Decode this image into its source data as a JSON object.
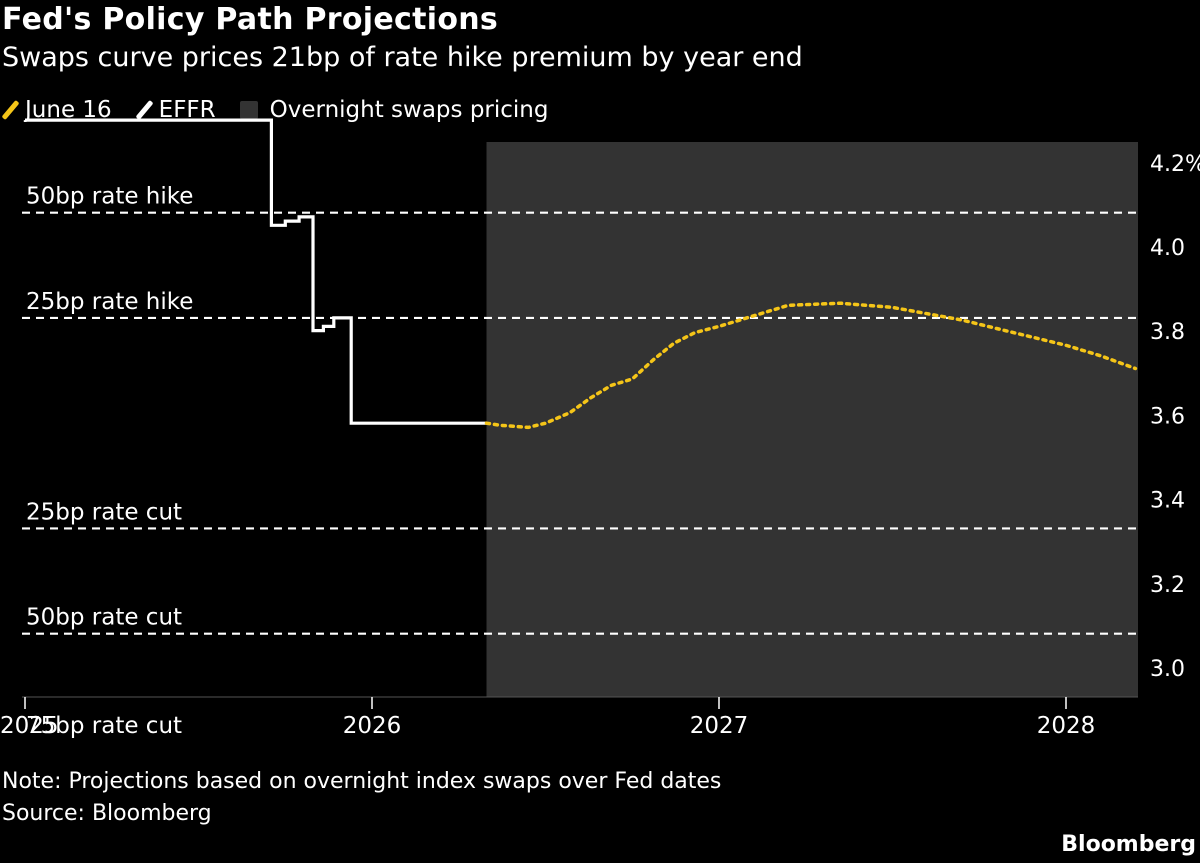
{
  "title": "Fed's Policy Path Projections",
  "subtitle": "Swaps curve prices 21bp of rate hike premium by year end",
  "legend": {
    "june16": "June 16",
    "effr": "EFFR",
    "overnight": "Overnight swaps pricing"
  },
  "note": "Note: Projections based on overnight index swaps over Fed dates",
  "source": "Source: Bloomberg",
  "brand": "Bloomberg",
  "colors": {
    "june16": "#f5c518",
    "effr": "#ffffff",
    "shade": "#333333",
    "background": "#000000"
  },
  "chart_data": {
    "type": "line",
    "title": "Fed's Policy Path Projections",
    "subtitle": "Swaps curve prices 21bp of rate hike premium by year end",
    "ylim": [
      3.0,
      4.25
    ],
    "xlim": [
      2025.0,
      2028.21
    ],
    "y_ticks": [
      {
        "value": 4.2,
        "label": "4.2%"
      },
      {
        "value": 4.0,
        "label": "4.0"
      },
      {
        "value": 3.8,
        "label": "3.8"
      },
      {
        "value": 3.6,
        "label": "3.6"
      },
      {
        "value": 3.4,
        "label": "3.4"
      },
      {
        "value": 3.2,
        "label": "3.2"
      },
      {
        "value": 3.0,
        "label": "3.0"
      }
    ],
    "x_ticks": [
      {
        "value": 2025.0,
        "label": "2025"
      },
      {
        "value": 2026.0,
        "label": "2026"
      },
      {
        "value": 2027.0,
        "label": "2027"
      },
      {
        "value": 2028.0,
        "label": "2028"
      }
    ],
    "reference_lines": [
      {
        "label": "50bp rate hike",
        "value": 4.11
      },
      {
        "label": "25bp rate hike",
        "value": 3.86
      },
      {
        "label": "25bp rate cut",
        "value": 3.36
      },
      {
        "label": "50bp rate cut",
        "value": 3.11
      },
      {
        "label": "75bp rate cut",
        "value": 2.86
      }
    ],
    "shaded_region": {
      "label": "Overnight swaps pricing",
      "x_start": 2026.33,
      "x_end": 2028.21
    },
    "series": [
      {
        "name": "EFFR",
        "style": "solid",
        "points": [
          [
            2025.0,
            4.33
          ],
          [
            2025.71,
            4.33
          ],
          [
            2025.71,
            4.08
          ],
          [
            2025.75,
            4.08
          ],
          [
            2025.75,
            4.09
          ],
          [
            2025.79,
            4.09
          ],
          [
            2025.79,
            4.1
          ],
          [
            2025.83,
            4.1
          ],
          [
            2025.83,
            3.83
          ],
          [
            2025.86,
            3.83
          ],
          [
            2025.86,
            3.84
          ],
          [
            2025.89,
            3.84
          ],
          [
            2025.89,
            3.86
          ],
          [
            2025.94,
            3.86
          ],
          [
            2025.94,
            3.61
          ],
          [
            2026.33,
            3.61
          ]
        ]
      },
      {
        "name": "June 16",
        "style": "dotted",
        "points": [
          [
            2026.33,
            3.61
          ],
          [
            2026.37,
            3.605
          ],
          [
            2026.45,
            3.6
          ],
          [
            2026.5,
            3.61
          ],
          [
            2026.57,
            3.635
          ],
          [
            2026.63,
            3.67
          ],
          [
            2026.69,
            3.7
          ],
          [
            2026.75,
            3.715
          ],
          [
            2026.81,
            3.76
          ],
          [
            2026.87,
            3.8
          ],
          [
            2026.93,
            3.825
          ],
          [
            2027.0,
            3.84
          ],
          [
            2027.1,
            3.865
          ],
          [
            2027.2,
            3.89
          ],
          [
            2027.35,
            3.895
          ],
          [
            2027.5,
            3.885
          ],
          [
            2027.6,
            3.87
          ],
          [
            2027.7,
            3.855
          ],
          [
            2027.8,
            3.835
          ],
          [
            2027.9,
            3.815
          ],
          [
            2028.0,
            3.795
          ],
          [
            2028.1,
            3.77
          ],
          [
            2028.2,
            3.74
          ]
        ]
      }
    ]
  }
}
